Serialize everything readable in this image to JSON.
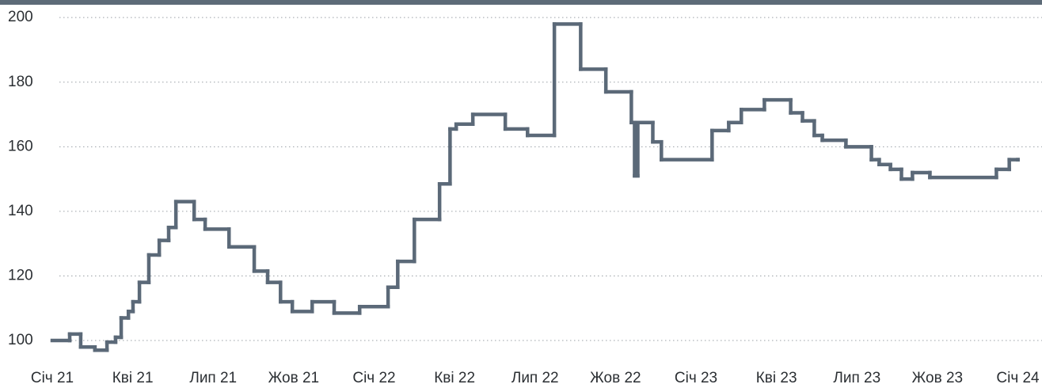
{
  "chart_data": {
    "type": "line",
    "step": "after",
    "color": "#5b6978",
    "grid": true,
    "x": [
      0,
      0.65,
      1.06,
      1.59,
      2.04,
      2.36,
      2.57,
      2.84,
      3.01,
      3.25,
      3.6,
      3.99,
      4.34,
      4.61,
      5.29,
      5.7,
      6.59,
      7.53,
      8.03,
      8.51,
      8.95,
      9.69,
      10.51,
      11.46,
      12.52,
      12.88,
      13.5,
      14.44,
      14.83,
      15.06,
      15.68,
      16.89,
      17.72,
      18.72,
      19.7,
      20.64,
      21.59,
      21.71,
      21.83,
      22.39,
      22.71,
      24.6,
      25.22,
      25.69,
      26.55,
      27.53,
      27.97,
      28.41,
      28.71,
      29.59,
      30.54,
      30.83,
      31.25,
      31.66,
      32.07,
      32.72,
      35.2,
      35.68,
      36
    ],
    "values": [
      100,
      102,
      98,
      97,
      99.5,
      101,
      107,
      109,
      112,
      118,
      126.5,
      131,
      135,
      143,
      137.5,
      134.5,
      129,
      121.5,
      118,
      112,
      109,
      112,
      108.5,
      110.5,
      116.5,
      124.5,
      137.5,
      148.5,
      165.5,
      167,
      170,
      165.5,
      163.5,
      198,
      184,
      177,
      167.5,
      151,
      167.5,
      161.5,
      156,
      165,
      167.5,
      171.5,
      174.5,
      170.5,
      168,
      163.5,
      162,
      160,
      156,
      154.5,
      153,
      150,
      152,
      150.5,
      153,
      156,
      156
    ],
    "xlim": [
      0,
      36.9
    ],
    "xticks": [
      {
        "value": 0,
        "label": "Січ 21"
      },
      {
        "value": 3,
        "label": "Кві 21"
      },
      {
        "value": 6,
        "label": "Лип 21"
      },
      {
        "value": 9,
        "label": "Жов 21"
      },
      {
        "value": 12,
        "label": "Січ 22"
      },
      {
        "value": 15,
        "label": "Кві 22"
      },
      {
        "value": 18,
        "label": "Лип 22"
      },
      {
        "value": 21,
        "label": "Жов 22"
      },
      {
        "value": 24,
        "label": "Січ 23"
      },
      {
        "value": 27,
        "label": "Кві 23"
      },
      {
        "value": 30,
        "label": "Лип 23"
      },
      {
        "value": 33,
        "label": "Жов 23"
      },
      {
        "value": 36,
        "label": "Січ 24"
      }
    ],
    "ylim": [
      93,
      202
    ],
    "yticks": [
      100,
      120,
      140,
      160,
      180,
      200
    ]
  }
}
